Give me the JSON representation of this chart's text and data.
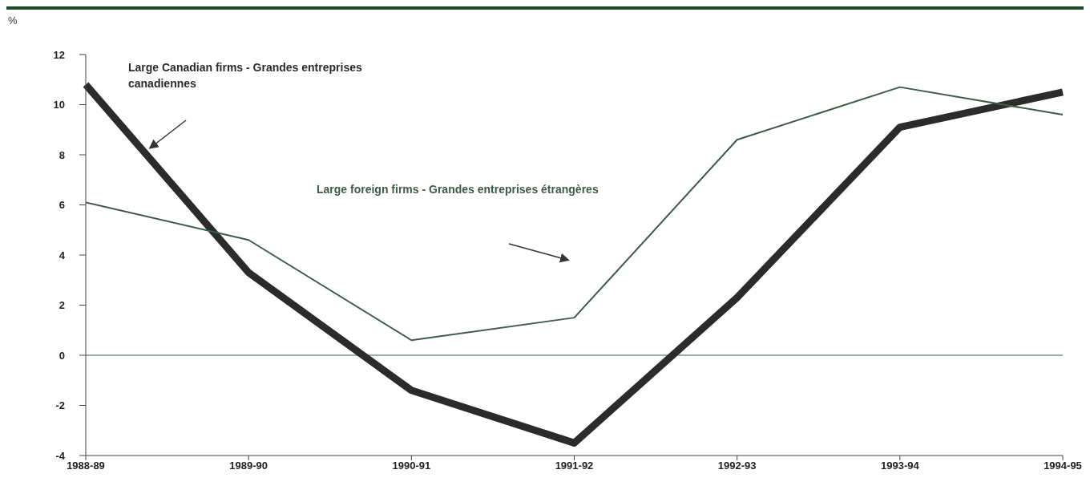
{
  "chart_data": {
    "type": "line",
    "ylabel": "%",
    "categories": [
      "1988-89",
      "1989-90",
      "1990-91",
      "1991-92",
      "1992-93",
      "1993-94",
      "1994-95"
    ],
    "series": [
      {
        "name": "Large Canadian firms - Grandes entreprises canadiennes",
        "color": "#2b2b2b",
        "values": [
          10.8,
          3.3,
          -1.4,
          -3.5,
          2.3,
          9.1,
          10.5
        ]
      },
      {
        "name": "Large foreign firms - Grandes entreprises étrangères",
        "color": "#3f5a49",
        "values": [
          6.1,
          4.6,
          0.6,
          1.5,
          8.6,
          10.7,
          9.6
        ]
      }
    ],
    "ylim": [
      -4,
      12
    ],
    "yticks": [
      -4,
      -2,
      0,
      2,
      4,
      6,
      8,
      10,
      12
    ],
    "ref_lines": [
      {
        "axis": "y",
        "value": 0,
        "color": "#3f5a49"
      }
    ],
    "grid": false,
    "legend": false,
    "marker": "none",
    "line_style": "solid"
  }
}
